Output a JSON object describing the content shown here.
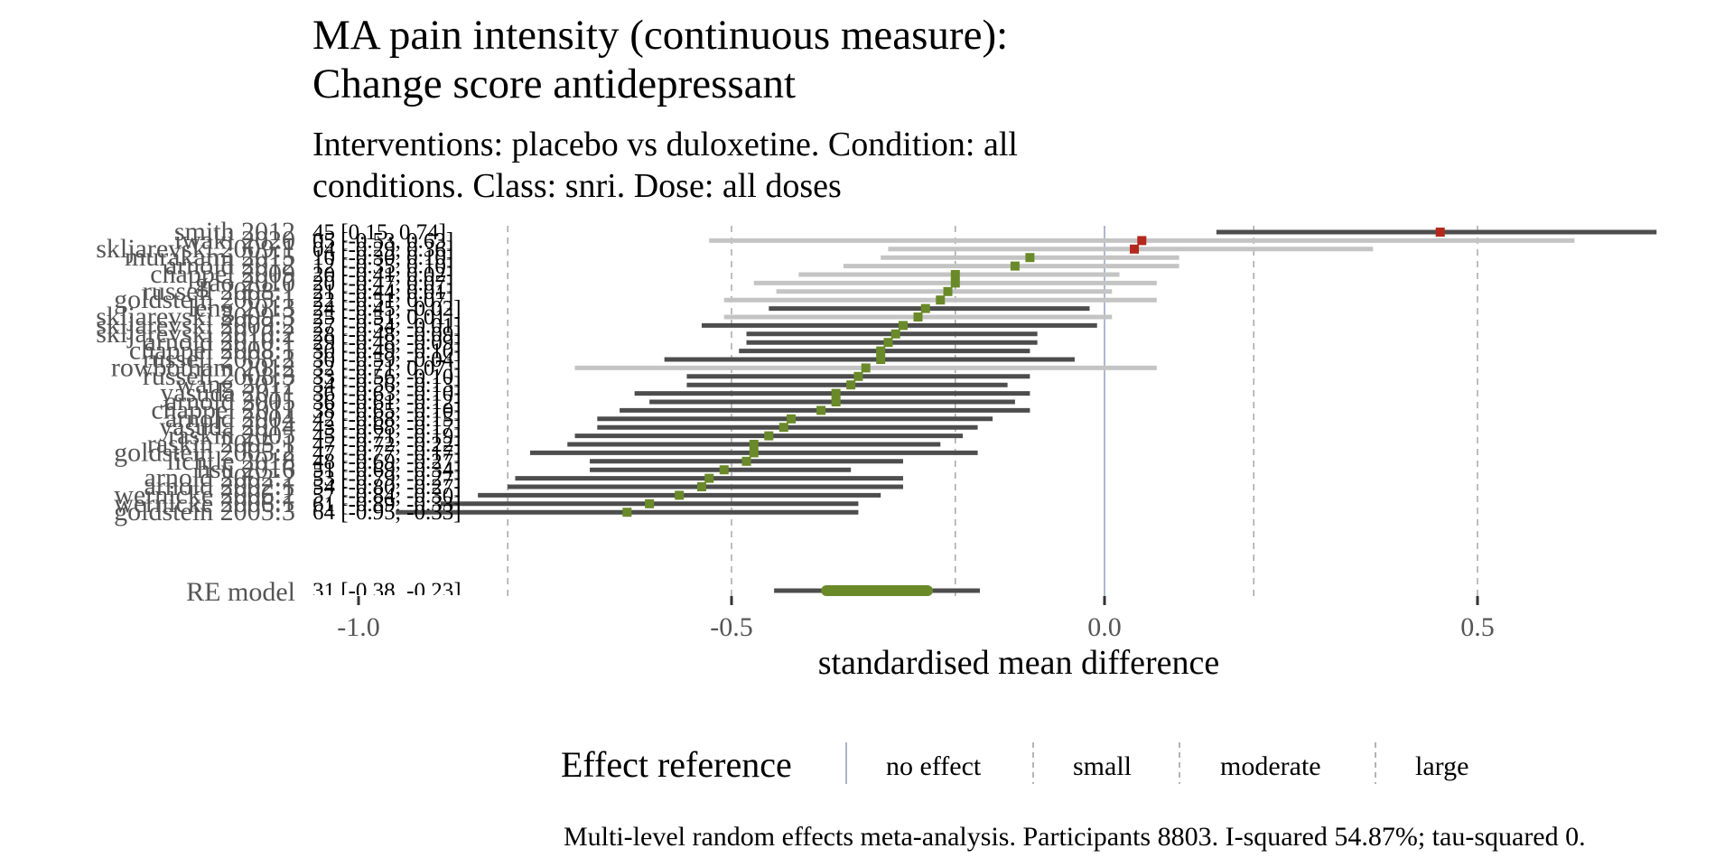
{
  "title_lines": [
    "MA pain intensity (continuous measure):",
    "Change score antidepressant"
  ],
  "subtitle_lines": [
    "Interventions: placebo vs duloxetine. Condition: all",
    "conditions. Class: snri. Dose: all doses"
  ],
  "caption": "Multi-level random effects meta-analysis. Participants 8803. I-squared 54.87%; tau-squared 0.",
  "legend": {
    "title": "Effect reference",
    "items": [
      {
        "label": "no effect",
        "line": "solid"
      },
      {
        "label": "small",
        "line": "dashed"
      },
      {
        "label": "moderate",
        "line": "dashed"
      },
      {
        "label": "large",
        "line": "dashed"
      }
    ]
  },
  "colors": {
    "point_positive": "#b5281c",
    "point_negative": "#6a8a2a",
    "ci_significant": "#4d4d4d",
    "ci_nonsignificant": "#c4c4c4",
    "zero_line": "#8d9ab8",
    "ref_lines": "#9a9a9a",
    "text": "#000000",
    "label_text": "#555555"
  },
  "chart_data": {
    "type": "forest",
    "xlabel": "standardised mean difference",
    "xlim": [
      -1.05,
      0.75
    ],
    "xticks": [
      -1.0,
      -0.5,
      0.0,
      0.5
    ],
    "xtick_labels": [
      "-1.0",
      "-0.5",
      "0.0",
      "0.5"
    ],
    "reference_lines": [
      -0.8,
      -0.5,
      -0.2,
      0.0,
      0.2,
      0.5
    ],
    "studies": [
      {
        "label": "smith 2012",
        "est": 0.45,
        "lo": 0.15,
        "hi": 0.74,
        "text": "45 [0.15, 0.74]",
        "sig": true
      },
      {
        "label": "iwaki 2020",
        "est": 0.05,
        "lo": -0.53,
        "hi": 0.63,
        "text": "05 [-0.53, 0.63]",
        "sig": false
      },
      {
        "label": "skljarevski 2009:1",
        "est": 0.04,
        "lo": -0.29,
        "hi": 0.36,
        "text": "04 [-0.29, 0.36]",
        "sig": false
      },
      {
        "label": "murakami 2015",
        "est": -0.1,
        "lo": -0.3,
        "hi": 0.1,
        "text": "10 [-0.30, 0.10]",
        "sig": false
      },
      {
        "label": "arnold 2012",
        "est": -0.12,
        "lo": -0.35,
        "hi": 0.1,
        "text": "12 [-0.35, 0.10]",
        "sig": false
      },
      {
        "label": "chappel 2009",
        "est": -0.2,
        "lo": -0.41,
        "hi": 0.02,
        "text": "20 [-0.41, 0.02]",
        "sig": false
      },
      {
        "label": "gao 2010",
        "est": -0.2,
        "lo": -0.47,
        "hi": 0.07,
        "text": "20 [-0.47, 0.07]",
        "sig": false
      },
      {
        "label": "russell 2008:1",
        "est": -0.21,
        "lo": -0.44,
        "hi": 0.01,
        "text": "21 [-0.44, 0.01]",
        "sig": false
      },
      {
        "label": "goldstein 2005:1",
        "est": -0.22,
        "lo": -0.51,
        "hi": 0.07,
        "text": "22 [-0.51, 0.07]",
        "sig": false
      },
      {
        "label": "leng 2013",
        "est": -0.24,
        "lo": -0.45,
        "hi": -0.02,
        "text": "24 [-0.45, -0.02]",
        "sig": true
      },
      {
        "label": "skljarevski 2009:3",
        "est": -0.25,
        "lo": -0.51,
        "hi": 0.01,
        "text": "25 [-0.51, 0.01]",
        "sig": false
      },
      {
        "label": "skljarevski 2009:2",
        "est": -0.27,
        "lo": -0.54,
        "hi": -0.01,
        "text": "27 [-0.54, -0.01]",
        "sig": true
      },
      {
        "label": "skljarevski 2010:2",
        "est": -0.28,
        "lo": -0.48,
        "hi": -0.09,
        "text": "28 [-0.48, -0.09]",
        "sig": true
      },
      {
        "label": "arnold 2010:1",
        "est": -0.29,
        "lo": -0.48,
        "hi": -0.09,
        "text": "29 [-0.48, -0.09]",
        "sig": true
      },
      {
        "label": "chappel 2008:1",
        "est": -0.3,
        "lo": -0.49,
        "hi": -0.1,
        "text": "30 [-0.49, -0.10]",
        "sig": true
      },
      {
        "label": "russell 2008:2",
        "est": -0.3,
        "lo": -0.59,
        "hi": -0.04,
        "text": "30 [-0.59, -0.04]",
        "sig": true
      },
      {
        "label": "rowbotham 2012",
        "est": -0.32,
        "lo": -0.71,
        "hi": 0.07,
        "text": "32 [-0.71, 0.07]",
        "sig": false
      },
      {
        "label": "russell 2008:3",
        "est": -0.33,
        "lo": -0.56,
        "hi": -0.1,
        "text": "33 [-0.56, -0.10]",
        "sig": true
      },
      {
        "label": "wang 2017",
        "est": -0.34,
        "lo": -0.56,
        "hi": -0.13,
        "text": "34 [-0.56, -0.13]",
        "sig": true
      },
      {
        "label": "yasuda 2011",
        "est": -0.36,
        "lo": -0.63,
        "hi": -0.1,
        "text": "36 [-0.63, -0.10]",
        "sig": true
      },
      {
        "label": "arnold 2005",
        "est": -0.36,
        "lo": -0.61,
        "hi": -0.12,
        "text": "36 [-0.61, -0.12]",
        "sig": true
      },
      {
        "label": "chappel 2011",
        "est": -0.38,
        "lo": -0.65,
        "hi": -0.1,
        "text": "38 [-0.65, -0.10]",
        "sig": true
      },
      {
        "label": "arnold 2004",
        "est": -0.42,
        "lo": -0.68,
        "hi": -0.15,
        "text": "42 [-0.68, -0.15]",
        "sig": true
      },
      {
        "label": "yasuda 2014",
        "est": -0.43,
        "lo": -0.68,
        "hi": -0.17,
        "text": "43 [-0.68, -0.17]",
        "sig": true
      },
      {
        "label": "raskin 2005",
        "est": -0.45,
        "lo": -0.71,
        "hi": -0.19,
        "text": "45 [-0.71, -0.19]",
        "sig": true
      },
      {
        "label": "raskin 2005:1",
        "est": -0.47,
        "lo": -0.72,
        "hi": -0.22,
        "text": "47 [-0.72, -0.22]",
        "sig": true
      },
      {
        "label": "goldstein 2005:2",
        "est": -0.47,
        "lo": -0.77,
        "hi": -0.17,
        "text": "47 [-0.77, -0.17]",
        "sig": true
      },
      {
        "label": "lichtle 2018",
        "est": -0.48,
        "lo": -0.69,
        "hi": -0.27,
        "text": "48 [-0.69, -0.27]",
        "sig": true
      },
      {
        "label": "hsu 2016",
        "est": -0.51,
        "lo": -0.69,
        "hi": -0.34,
        "text": "51 [-0.69, -0.34]",
        "sig": true
      },
      {
        "label": "arnold 2002:2",
        "est": -0.53,
        "lo": -0.79,
        "hi": -0.27,
        "text": "53 [-0.79, -0.27]",
        "sig": true
      },
      {
        "label": "arnold 2002:1",
        "est": -0.54,
        "lo": -0.8,
        "hi": -0.27,
        "text": "54 [-0.80, -0.27]",
        "sig": true
      },
      {
        "label": "wernicke 2006:2",
        "est": -0.57,
        "lo": -0.84,
        "hi": -0.3,
        "text": "57 [-0.84, -0.30]",
        "sig": true
      },
      {
        "label": "wernicke 2006:1",
        "est": -0.61,
        "lo": -0.89,
        "hi": -0.33,
        "text": "61 [-0.89, -0.33]",
        "sig": true
      },
      {
        "label": "goldstein 2005:3",
        "est": -0.64,
        "lo": -0.95,
        "hi": -0.33,
        "text": "64 [-0.95, -0.33]",
        "sig": true
      }
    ],
    "pooled": {
      "label": "RE model",
      "est": -0.31,
      "lo": -0.38,
      "hi": -0.23,
      "text": "31 [-0.38, -0.23]"
    }
  }
}
